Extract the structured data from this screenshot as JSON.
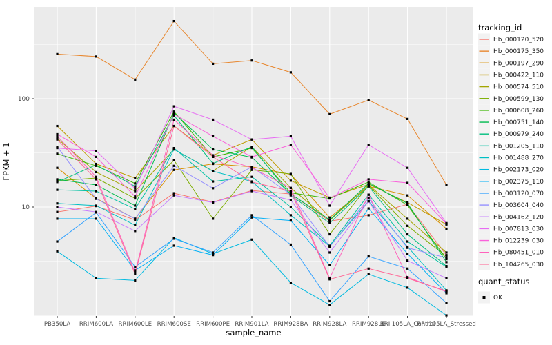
{
  "figure": {
    "background": "#FFFFFF",
    "panel_bg": "#EBEBEB",
    "grid_color": "#FFFFFF",
    "tick_color": "#333333",
    "tick_label_color": "#4D4D4D",
    "axis_title_color": "#000000",
    "point_color": "#000000",
    "legend_key_bg": "#F2F2F2"
  },
  "chart_data": {
    "type": "line",
    "title": "",
    "xlabel": "sample_name",
    "ylabel": "FPKM + 1",
    "y_scale": "log10",
    "grid": true,
    "legend_position": "right",
    "y_major_ticks": [
      10,
      100
    ],
    "y_major_tick_labels": [
      "10",
      "100"
    ],
    "y_minor_ticks": [
      3.1623,
      31.623,
      316.23
    ],
    "ylim": [
      0.95,
      700
    ],
    "categories": [
      "PB350LA",
      "RRIM600LA",
      "RRIM600LE",
      "RRIM600SE",
      "RRIM600PE",
      "RRIM901LA",
      "RRIM928BA",
      "RRIM928LA",
      "RRIM928LE",
      "RRII105LA_Control",
      "RRII105LA_Stressed"
    ],
    "legend": {
      "title": "tracking_id"
    },
    "legend2": {
      "title": "quant_status",
      "items": [
        {
          "label": "OK"
        }
      ]
    },
    "series": [
      {
        "name": "Hb_000120_520",
        "color": "#F8766D",
        "values": [
          9.0,
          10.2,
          7.6,
          13.4,
          11.1,
          14.2,
          13.2,
          7.4,
          8.4,
          10.6,
          3.6
        ]
      },
      {
        "name": "Hb_000175_350",
        "color": "#E8872E",
        "values": [
          258,
          245,
          150,
          520,
          210,
          225,
          175,
          72,
          97,
          65,
          16
        ]
      },
      {
        "name": "Hb_000197_290",
        "color": "#D89000",
        "values": [
          23,
          12,
          7.8,
          22,
          25,
          23.5,
          20,
          8.0,
          15.5,
          12.8,
          6.3
        ]
      },
      {
        "name": "Hb_000422_110",
        "color": "#C09B00",
        "values": [
          56,
          25,
          18.5,
          56,
          30,
          42,
          17.5,
          12.2,
          16.2,
          11.0,
          6.9
        ]
      },
      {
        "name": "Hb_000574_510",
        "color": "#A3A500",
        "values": [
          43,
          21,
          14,
          34,
          21.5,
          36,
          15,
          7.5,
          16,
          7.8,
          3.8
        ]
      },
      {
        "name": "Hb_000599_130",
        "color": "#7CAE00",
        "values": [
          17.5,
          18.5,
          12,
          27,
          7.8,
          22,
          20.2,
          5.6,
          15.8,
          6.7,
          3.5
        ]
      },
      {
        "name": "Hb_000608_260",
        "color": "#39B600",
        "values": [
          31,
          24,
          16.5,
          76,
          29,
          35,
          13.5,
          12.0,
          17,
          10.4,
          3.3
        ]
      },
      {
        "name": "Hb_000751_140",
        "color": "#00BB4E",
        "values": [
          18,
          16,
          10.3,
          74,
          34,
          28.7,
          13.2,
          7.6,
          16.5,
          10.8,
          3.1
        ]
      },
      {
        "name": "Hb_000979_240",
        "color": "#00BF7D",
        "values": [
          17,
          24.5,
          15.5,
          70,
          25.2,
          36,
          12.8,
          7.1,
          15.5,
          5.6,
          2.85
        ]
      },
      {
        "name": "Hb_001205_110",
        "color": "#00C1A3",
        "values": [
          14.4,
          14,
          9.6,
          35,
          17.2,
          19,
          10,
          4.4,
          13,
          4.8,
          2.8
        ]
      },
      {
        "name": "Hb_001488_270",
        "color": "#00BFC4",
        "values": [
          10.8,
          10.3,
          6.8,
          34,
          21.4,
          17.2,
          8.4,
          4.35,
          11.3,
          4.3,
          1.7
        ]
      },
      {
        "name": "Hb_002173_020",
        "color": "#00BAE0",
        "values": [
          3.9,
          2.2,
          2.1,
          5.2,
          3.7,
          5.0,
          2.0,
          1.25,
          2.4,
          1.8,
          1.0
        ]
      },
      {
        "name": "Hb_002375_110",
        "color": "#00B0F6",
        "values": [
          7.8,
          7.8,
          2.6,
          4.4,
          3.6,
          8.0,
          7.5,
          2.9,
          9.7,
          3.7,
          1.6
        ]
      },
      {
        "name": "Hb_003120_070",
        "color": "#35A2FF",
        "values": [
          4.8,
          8.9,
          2.8,
          5.1,
          3.8,
          8.4,
          4.5,
          1.35,
          3.5,
          2.7,
          1.3
        ]
      },
      {
        "name": "Hb_003604_040",
        "color": "#9590FF",
        "values": [
          36,
          11.9,
          7.8,
          24,
          14.9,
          23.5,
          13,
          4.3,
          12,
          4.2,
          3.4
        ]
      },
      {
        "name": "Hb_004162_120",
        "color": "#C77CFF",
        "values": [
          10.0,
          9.0,
          6.0,
          12.8,
          11,
          14,
          11.6,
          3.8,
          11.3,
          3.2,
          2.2
        ]
      },
      {
        "name": "Hb_007813_030",
        "color": "#E76BF3",
        "values": [
          35,
          33,
          14.8,
          85,
          64,
          42,
          45,
          10.3,
          37.5,
          23,
          7.1
        ]
      },
      {
        "name": "Hb_012239_030",
        "color": "#FA62DB",
        "values": [
          47,
          29,
          12.5,
          72,
          45,
          29,
          37.5,
          12.1,
          18,
          16.7,
          7.0
        ]
      },
      {
        "name": "Hb_080451_010",
        "color": "#FF62BC",
        "values": [
          45,
          19,
          2.5,
          64,
          30,
          23,
          15,
          2.2,
          13,
          2.25,
          1.65
        ]
      },
      {
        "name": "Hb_104265_030",
        "color": "#FF6A98",
        "values": [
          42,
          18,
          2.4,
          56,
          29,
          17,
          14,
          2.15,
          2.7,
          2.2,
          1.68
        ]
      }
    ]
  }
}
